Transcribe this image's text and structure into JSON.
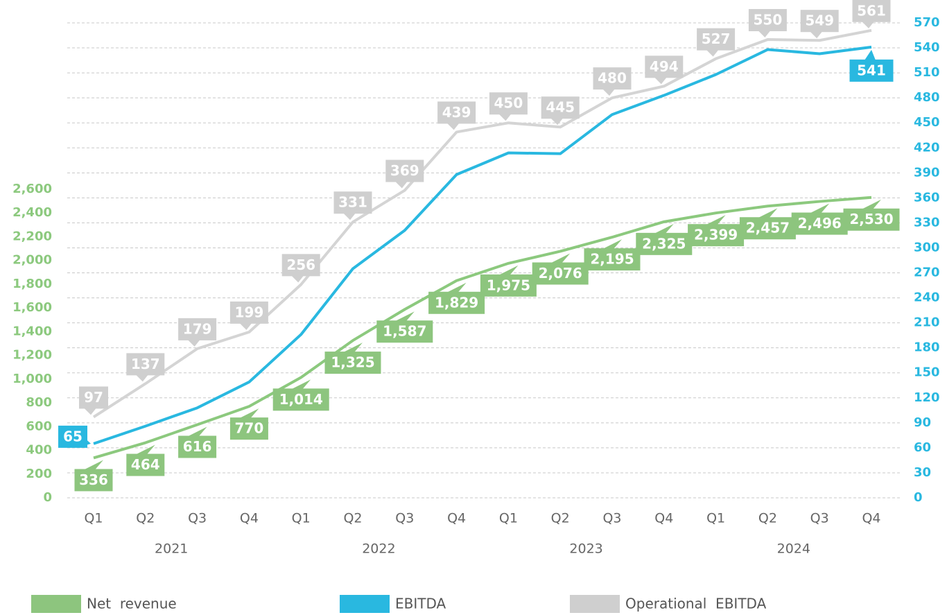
{
  "chart_data": {
    "type": "line",
    "categories": [
      "Q1",
      "Q2",
      "Q3",
      "Q4",
      "Q1",
      "Q2",
      "Q3",
      "Q4",
      "Q1",
      "Q2",
      "Q3",
      "Q4",
      "Q1",
      "Q2",
      "Q3",
      "Q4"
    ],
    "x_groups": [
      "2021",
      "2022",
      "2023",
      "2024"
    ],
    "ylim": [
      0,
      4000
    ],
    "yticks": [
      0,
      200,
      400,
      600,
      800,
      {
        "value": 1000,
        "label": "1,000"
      },
      {
        "value": 1200,
        "label": "1,200"
      },
      {
        "value": 1400,
        "label": "1,400"
      },
      {
        "value": 1600,
        "label": "1,600"
      },
      {
        "value": 1800,
        "label": "1,800"
      },
      {
        "value": 2000,
        "label": "2,000"
      },
      {
        "value": 2200,
        "label": "2,200"
      },
      {
        "value": 2400,
        "label": "2,400"
      },
      {
        "value": 2600,
        "label": "2,600"
      }
    ],
    "y2lim": [
      0,
      570
    ],
    "y2ticks": [
      0,
      30,
      60,
      90,
      120,
      150,
      180,
      210,
      240,
      270,
      300,
      330,
      360,
      390,
      420,
      450,
      480,
      510,
      540,
      570
    ],
    "grid": true,
    "legend": "bottom",
    "series": [
      {
        "name": "Net  revenue",
        "color": "#8cc97e",
        "label_color": "#8dc57e",
        "values": [
          336,
          464,
          616,
          770,
          1014,
          1325,
          1587,
          1829,
          1975,
          2076,
          2195,
          2325,
          2399,
          2457,
          2496,
          2530
        ],
        "value_labels": [
          "336",
          "464",
          "616",
          "770",
          "1,014",
          "1,325",
          "1,587",
          "1,829",
          "1,975",
          "2,076",
          "2,195",
          "2,325",
          "2,399",
          "2,457",
          "2,496",
          "2,530"
        ]
      },
      {
        "name": "EBITDA",
        "color": "#29b8e0",
        "label_color": "#29b8e0",
        "axis": "y2",
        "values": [
          65,
          86,
          108,
          139,
          196,
          275,
          321,
          388,
          414,
          413,
          460,
          483,
          508,
          538,
          533,
          541
        ],
        "value_labels": [
          "65",
          null,
          null,
          null,
          null,
          null,
          null,
          null,
          null,
          null,
          null,
          null,
          null,
          null,
          null,
          "541"
        ]
      },
      {
        "name": "Operational  EBITDA",
        "color": "#d4d4d4",
        "label_color": "#cfcfcf",
        "axis": "y2",
        "values": [
          97,
          137,
          179,
          199,
          256,
          331,
          369,
          439,
          450,
          445,
          480,
          494,
          527,
          550,
          549,
          561
        ]
      }
    ]
  }
}
